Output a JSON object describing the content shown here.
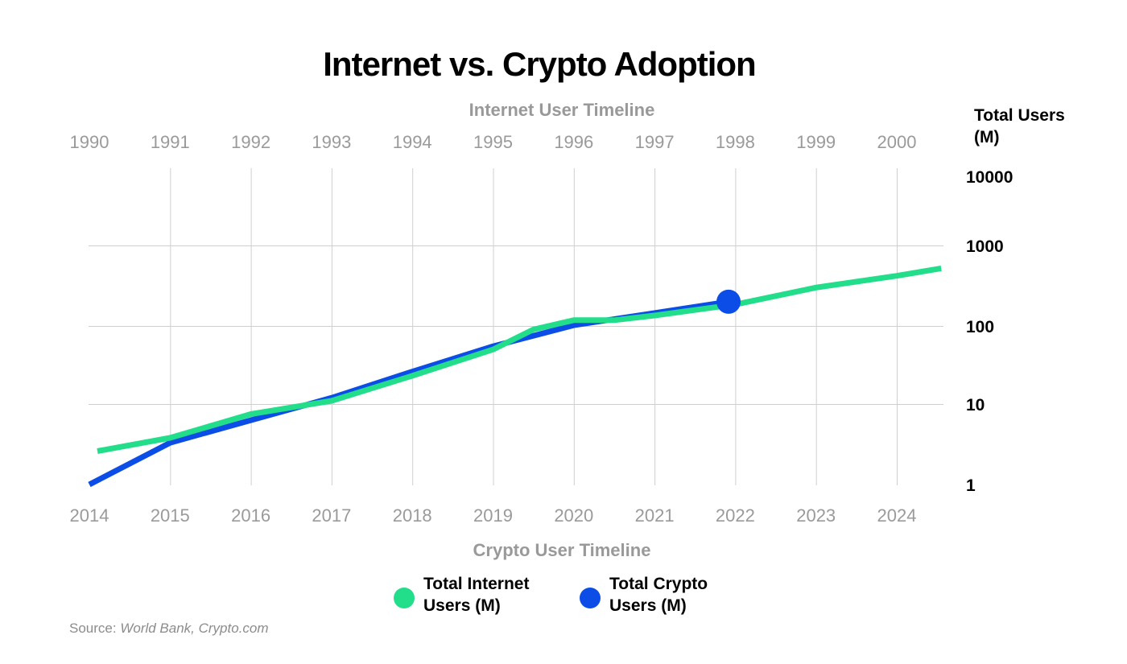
{
  "chart_data": {
    "type": "line",
    "title": "Internet vs. Crypto Adoption",
    "top_axis_label": "Internet User Timeline",
    "bottom_axis_label": "Crypto User Timeline",
    "ylabel": "Total Users (M)",
    "yscale": "log",
    "ylim": [
      1,
      10000
    ],
    "y_ticks": [
      "10000",
      "1000",
      "100",
      "10",
      "1"
    ],
    "y_tick_values": [
      10000,
      1000,
      100,
      10,
      1
    ],
    "top_x_ticks": [
      "1990",
      "1991",
      "1992",
      "1993",
      "1994",
      "1995",
      "1996",
      "1997",
      "1998",
      "1999",
      "2000"
    ],
    "bottom_x_ticks": [
      "2014",
      "2015",
      "2016",
      "2017",
      "2018",
      "2019",
      "2020",
      "2021",
      "2022",
      "2023",
      "2024"
    ],
    "grid": true,
    "legend_position": "bottom-center",
    "series": [
      {
        "name": "Total Internet Users (M)",
        "axis": "top",
        "color": "#22dd8a",
        "points": [
          {
            "x": 1990.1,
            "y": 2.6
          },
          {
            "x": 1991,
            "y": 3.8
          },
          {
            "x": 1992,
            "y": 7.5
          },
          {
            "x": 1993,
            "y": 11
          },
          {
            "x": 1994,
            "y": 23
          },
          {
            "x": 1995,
            "y": 50
          },
          {
            "x": 1995.5,
            "y": 90
          },
          {
            "x": 1996,
            "y": 118
          },
          {
            "x": 1996.5,
            "y": 118
          },
          {
            "x": 1997,
            "y": 135
          },
          {
            "x": 1998,
            "y": 185
          },
          {
            "x": 1999,
            "y": 300
          },
          {
            "x": 2000,
            "y": 420
          },
          {
            "x": 2000.55,
            "y": 520
          }
        ]
      },
      {
        "name": "Total Crypto Users (M)",
        "axis": "bottom",
        "color": "#0b4de6",
        "marker_at_last_point": true,
        "points": [
          {
            "x": "2014-01",
            "y": 1
          },
          {
            "x": "2015-01",
            "y": 3.3
          },
          {
            "x": "2016-01",
            "y": 6.3
          },
          {
            "x": "2017-01",
            "y": 12
          },
          {
            "x": "2018-01",
            "y": 26
          },
          {
            "x": "2019-01",
            "y": 55
          },
          {
            "x": "2020-01",
            "y": 102
          },
          {
            "x": "2021-01",
            "y": 145
          },
          {
            "x": "2021-12",
            "y": 200
          }
        ]
      }
    ]
  },
  "source": {
    "prefix": "Source: ",
    "text": "World Bank, Crypto.com"
  },
  "colors": {
    "internet": "#22dd8a",
    "crypto": "#0b4de6"
  }
}
